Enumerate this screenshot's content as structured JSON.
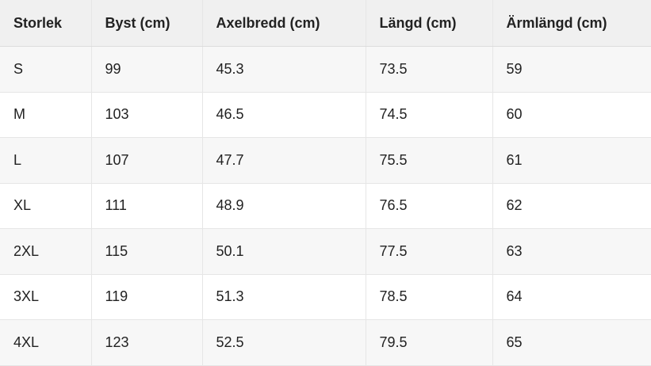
{
  "table": {
    "header": [
      "Storlek",
      "Byst (cm)",
      "Axelbredd (cm)",
      "Längd (cm)",
      "Ärmlängd (cm)"
    ],
    "rows": [
      [
        "S",
        "99",
        "45.3",
        "73.5",
        "59"
      ],
      [
        "M",
        "103",
        "46.5",
        "74.5",
        "60"
      ],
      [
        "L",
        "107",
        "47.7",
        "75.5",
        "61"
      ],
      [
        "XL",
        "111",
        "48.9",
        "76.5",
        "62"
      ],
      [
        "2XL",
        "115",
        "50.1",
        "77.5",
        "63"
      ],
      [
        "3XL",
        "119",
        "51.3",
        "78.5",
        "64"
      ],
      [
        "4XL",
        "123",
        "52.5",
        "79.5",
        "65"
      ]
    ]
  }
}
